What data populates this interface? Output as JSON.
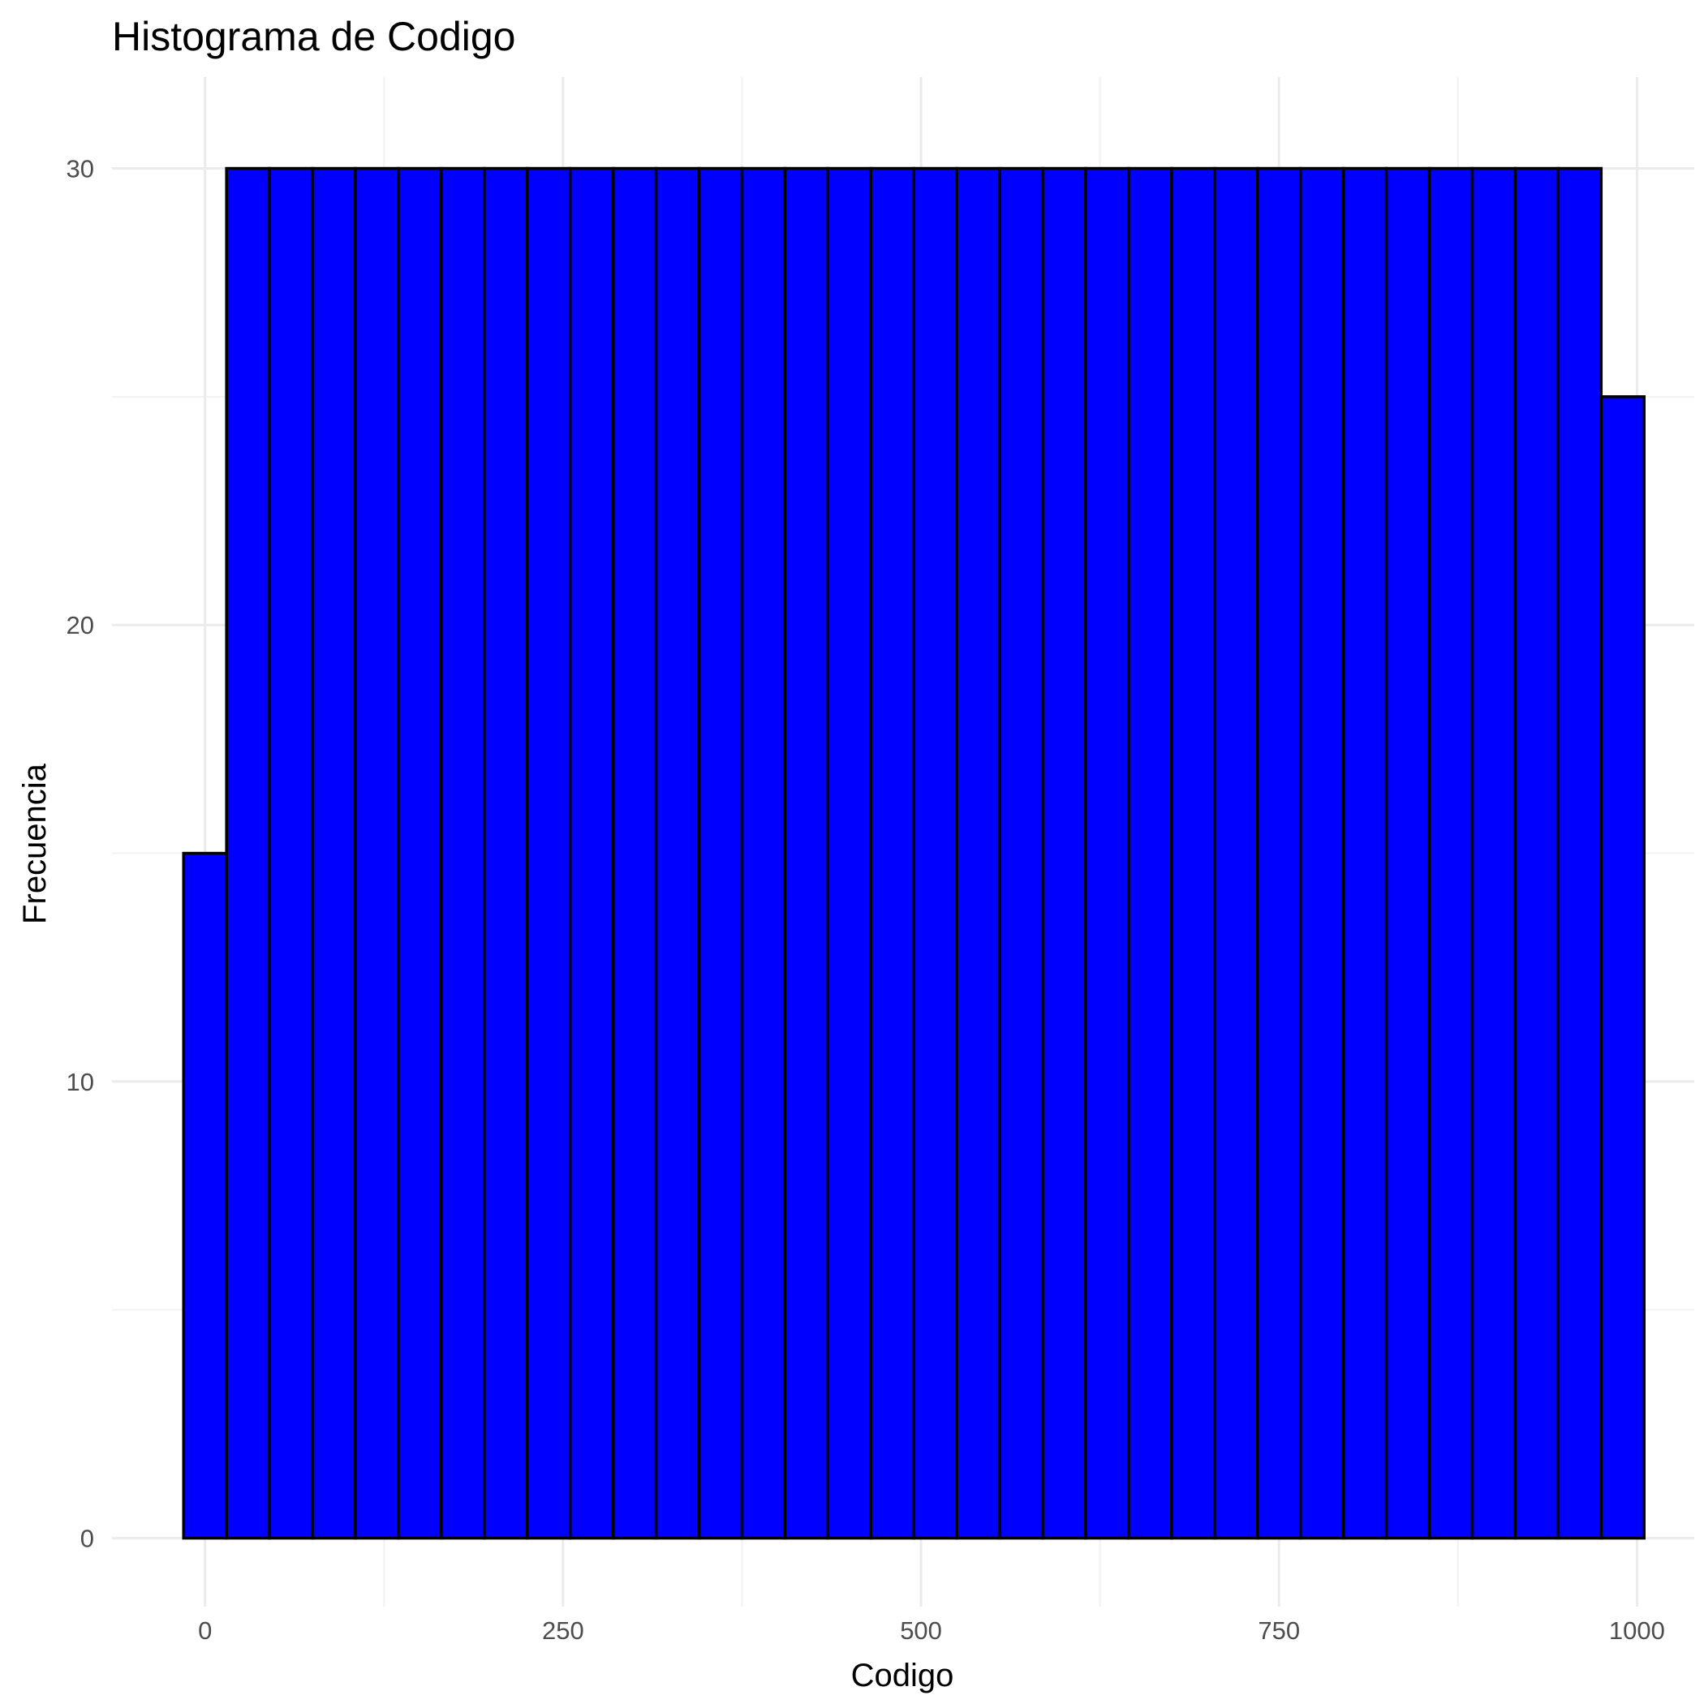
{
  "chart_data": {
    "type": "bar",
    "title": "Histograma de Codigo",
    "xlabel": "Codigo",
    "ylabel": "Frecuencia",
    "xlim": [
      -65,
      1040
    ],
    "ylim": [
      -1.5,
      32
    ],
    "x_ticks": [
      0,
      250,
      500,
      750,
      1000
    ],
    "y_ticks": [
      0,
      10,
      20,
      30
    ],
    "bin_width": 30,
    "bins": [
      {
        "x0": -15,
        "x1": 15,
        "count": 15
      },
      {
        "x0": 15,
        "x1": 45,
        "count": 30
      },
      {
        "x0": 45,
        "x1": 75,
        "count": 30
      },
      {
        "x0": 75,
        "x1": 105,
        "count": 30
      },
      {
        "x0": 105,
        "x1": 135,
        "count": 30
      },
      {
        "x0": 135,
        "x1": 165,
        "count": 30
      },
      {
        "x0": 165,
        "x1": 195,
        "count": 30
      },
      {
        "x0": 195,
        "x1": 225,
        "count": 30
      },
      {
        "x0": 225,
        "x1": 255,
        "count": 30
      },
      {
        "x0": 255,
        "x1": 285,
        "count": 30
      },
      {
        "x0": 285,
        "x1": 315,
        "count": 30
      },
      {
        "x0": 315,
        "x1": 345,
        "count": 30
      },
      {
        "x0": 345,
        "x1": 375,
        "count": 30
      },
      {
        "x0": 375,
        "x1": 405,
        "count": 30
      },
      {
        "x0": 405,
        "x1": 435,
        "count": 30
      },
      {
        "x0": 435,
        "x1": 465,
        "count": 30
      },
      {
        "x0": 465,
        "x1": 495,
        "count": 30
      },
      {
        "x0": 495,
        "x1": 525,
        "count": 30
      },
      {
        "x0": 525,
        "x1": 555,
        "count": 30
      },
      {
        "x0": 555,
        "x1": 585,
        "count": 30
      },
      {
        "x0": 585,
        "x1": 615,
        "count": 30
      },
      {
        "x0": 615,
        "x1": 645,
        "count": 30
      },
      {
        "x0": 645,
        "x1": 675,
        "count": 30
      },
      {
        "x0": 675,
        "x1": 705,
        "count": 30
      },
      {
        "x0": 705,
        "x1": 735,
        "count": 30
      },
      {
        "x0": 735,
        "x1": 765,
        "count": 30
      },
      {
        "x0": 765,
        "x1": 795,
        "count": 30
      },
      {
        "x0": 795,
        "x1": 825,
        "count": 30
      },
      {
        "x0": 825,
        "x1": 855,
        "count": 30
      },
      {
        "x0": 855,
        "x1": 885,
        "count": 30
      },
      {
        "x0": 885,
        "x1": 915,
        "count": 30
      },
      {
        "x0": 915,
        "x1": 945,
        "count": 30
      },
      {
        "x0": 945,
        "x1": 975,
        "count": 30
      },
      {
        "x0": 975,
        "x1": 1005,
        "count": 25
      }
    ],
    "grid": true,
    "legend": "none",
    "colors": {
      "fill": "#0000ff",
      "outline": "#000000",
      "background": "#ffffff"
    }
  }
}
